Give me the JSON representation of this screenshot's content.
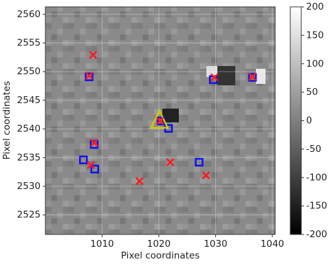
{
  "chart_data": {
    "type": "scatter",
    "xlabel": "Pixel coordinates",
    "ylabel": "Pixel coordinates",
    "xlim": [
      1000,
      1040.5
    ],
    "ylim": [
      2521.6,
      2561.3
    ],
    "xticks": [
      1010,
      1020,
      1030,
      1040
    ],
    "yticks": [
      2525,
      2530,
      2535,
      2540,
      2545,
      2550,
      2555,
      2560
    ],
    "grid": true,
    "colorbar": {
      "lim": [
        -200,
        200
      ],
      "ticks": [
        -200,
        -150,
        -100,
        -50,
        0,
        50,
        100,
        150,
        200
      ]
    },
    "series": [
      {
        "marker": "x",
        "color": "#ff1a1a",
        "x": [
          1008.4,
          1007.7,
          1029.8,
          1036.5,
          1008.6,
          1022.0,
          1008.0,
          1028.3,
          1016.6,
          1020.2
        ],
        "values": [
          2552.9,
          2549.3,
          2549.0,
          2549.1,
          2537.6,
          2534.2,
          2533.7,
          2531.9,
          2530.9,
          2541.4
        ]
      },
      {
        "marker": "square",
        "color": "#1010ee",
        "x": [
          1007.7,
          1029.6,
          1036.5,
          1008.6,
          1006.7,
          1008.7,
          1027.1,
          1021.7,
          1020.4
        ],
        "values": [
          2549.1,
          2548.6,
          2549.0,
          2537.3,
          2534.6,
          2533.0,
          2534.2,
          2540.1,
          2541.4
        ]
      },
      {
        "marker": "triangle",
        "color": "#cccc00",
        "x": [
          1020.1
        ],
        "values": [
          2541.4
        ]
      }
    ]
  }
}
